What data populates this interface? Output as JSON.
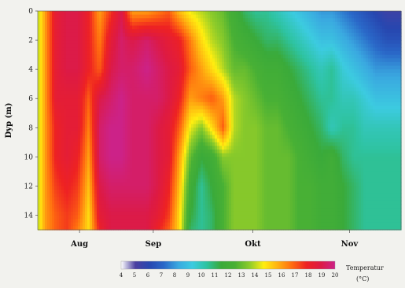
{
  "chart_data": {
    "type": "heatmap",
    "ylabel": "Dyp (m)",
    "y_ticks": [
      0,
      2,
      4,
      6,
      8,
      10,
      12,
      14
    ],
    "y_range": [
      0,
      15
    ],
    "y_reversed": true,
    "x_ticks": [
      "Aug",
      "Sep",
      "Okt",
      "Nov"
    ],
    "colorbar": {
      "label_line1": "Temperatur",
      "label_line2": "(°C)",
      "ticks": [
        4,
        5,
        6,
        7,
        8,
        9,
        10,
        11,
        12,
        13,
        14,
        15,
        16,
        17,
        18,
        19,
        20
      ],
      "range": [
        4,
        20
      ],
      "colors": [
        "#ffffff",
        "#4a3fa0",
        "#2747b0",
        "#2a68c8",
        "#3aa8e0",
        "#3ccbe0",
        "#2ec3a0",
        "#3aaa3a",
        "#48b035",
        "#8ccb2a",
        "#ffee10",
        "#ffb010",
        "#ff6a10",
        "#ee2222",
        "#dd1a44",
        "#cc2288"
      ]
    },
    "depths": [
      0,
      2,
      4,
      6,
      8,
      10,
      12,
      14,
      15
    ],
    "columns": [
      {
        "x": 0.0,
        "t": [
          14,
          14,
          14,
          14,
          14,
          14,
          14,
          14,
          14
        ]
      },
      {
        "x": 0.02,
        "t": [
          16,
          16,
          16,
          16,
          16,
          16,
          16,
          16,
          16
        ]
      },
      {
        "x": 0.05,
        "t": [
          18.5,
          18.5,
          18.5,
          18.5,
          18,
          18,
          17.5,
          17,
          17
        ]
      },
      {
        "x": 0.08,
        "t": [
          19,
          19,
          19,
          18.5,
          18.5,
          18.5,
          18,
          17.5,
          17.5
        ]
      },
      {
        "x": 0.11,
        "t": [
          19,
          19,
          19,
          18.5,
          18.5,
          18,
          17.5,
          17,
          16.5
        ]
      },
      {
        "x": 0.14,
        "t": [
          18,
          18,
          18,
          17,
          16.5,
          16,
          15.5,
          15,
          15
        ]
      },
      {
        "x": 0.17,
        "t": [
          16,
          16.5,
          17,
          19,
          19.5,
          19.5,
          19,
          18.5,
          18
        ]
      },
      {
        "x": 0.2,
        "t": [
          17.5,
          18.5,
          19,
          19.5,
          20,
          20,
          19.5,
          19,
          19
        ]
      },
      {
        "x": 0.23,
        "t": [
          19,
          19.5,
          19.5,
          20,
          20,
          20,
          19.5,
          19,
          19
        ]
      },
      {
        "x": 0.26,
        "t": [
          16,
          19,
          19.5,
          19.5,
          19.5,
          19.5,
          19.5,
          19,
          19
        ]
      },
      {
        "x": 0.3,
        "t": [
          16,
          19.5,
          20,
          19.5,
          19.5,
          19.5,
          19.5,
          19,
          19
        ]
      },
      {
        "x": 0.33,
        "t": [
          16.5,
          19,
          19.5,
          19.5,
          19,
          19,
          19,
          18.5,
          18
        ]
      },
      {
        "x": 0.36,
        "t": [
          17,
          18.5,
          19,
          19,
          18.5,
          18.5,
          18,
          17.5,
          17
        ]
      },
      {
        "x": 0.39,
        "t": [
          15.5,
          18,
          18.5,
          18,
          17,
          16,
          15.5,
          15,
          15
        ]
      },
      {
        "x": 0.42,
        "t": [
          14.5,
          16.5,
          17,
          16,
          14.5,
          13,
          12,
          11.5,
          11
        ]
      },
      {
        "x": 0.45,
        "t": [
          14,
          15,
          16,
          16.5,
          13.5,
          11.5,
          10.5,
          10.5,
          10.5
        ]
      },
      {
        "x": 0.48,
        "t": [
          13.5,
          14,
          15,
          17,
          15,
          12,
          11.5,
          11,
          11
        ]
      },
      {
        "x": 0.51,
        "t": [
          13,
          13.5,
          14,
          16,
          17,
          13.5,
          12.5,
          12.5,
          12.5
        ]
      },
      {
        "x": 0.54,
        "t": [
          12,
          12.5,
          13,
          14,
          14,
          13.5,
          13.5,
          13.5,
          13.5
        ]
      },
      {
        "x": 0.57,
        "t": [
          11,
          12,
          13,
          13.5,
          13.5,
          13.5,
          13.5,
          13.5,
          13.5
        ]
      },
      {
        "x": 0.6,
        "t": [
          10.5,
          11.5,
          12.5,
          13,
          13.5,
          13.5,
          13.5,
          13.5,
          13.5
        ]
      },
      {
        "x": 0.63,
        "t": [
          10.5,
          11,
          12,
          12.5,
          13,
          13,
          13,
          13,
          13
        ]
      },
      {
        "x": 0.66,
        "t": [
          10,
          11,
          12,
          12.5,
          13,
          13,
          13,
          13,
          13
        ]
      },
      {
        "x": 0.69,
        "t": [
          9.5,
          10.5,
          11.5,
          12,
          12.5,
          13,
          13,
          13,
          13
        ]
      },
      {
        "x": 0.72,
        "t": [
          9,
          10,
          11,
          11.5,
          12,
          12.5,
          12.5,
          12.5,
          12.5
        ]
      },
      {
        "x": 0.75,
        "t": [
          8.5,
          9.5,
          10.5,
          11,
          11.5,
          12,
          12.5,
          12.5,
          12.5
        ]
      },
      {
        "x": 0.78,
        "t": [
          8,
          9,
          10,
          10.5,
          11,
          11.5,
          12,
          12,
          12
        ]
      },
      {
        "x": 0.81,
        "t": [
          8,
          9,
          10.5,
          10.5,
          10,
          12,
          12,
          12,
          12
        ]
      },
      {
        "x": 0.84,
        "t": [
          7.5,
          8.5,
          9.5,
          10,
          10.5,
          11,
          11.5,
          11.5,
          11.5
        ]
      },
      {
        "x": 0.87,
        "t": [
          7,
          8,
          9,
          10,
          10.5,
          10.5,
          11,
          11,
          11
        ]
      },
      {
        "x": 0.9,
        "t": [
          6.5,
          7.5,
          8.5,
          9.5,
          10,
          10.5,
          10.5,
          10.5,
          10.5
        ]
      },
      {
        "x": 0.93,
        "t": [
          6,
          7,
          8,
          9,
          10,
          10.5,
          10.5,
          10.5,
          10.5
        ]
      },
      {
        "x": 0.96,
        "t": [
          5.5,
          6.5,
          8,
          9,
          10,
          10.5,
          10.5,
          10.5,
          10.5
        ]
      },
      {
        "x": 1.0,
        "t": [
          5.5,
          6.5,
          8,
          9,
          10,
          10.5,
          10.5,
          10.5,
          10.5
        ]
      }
    ]
  }
}
